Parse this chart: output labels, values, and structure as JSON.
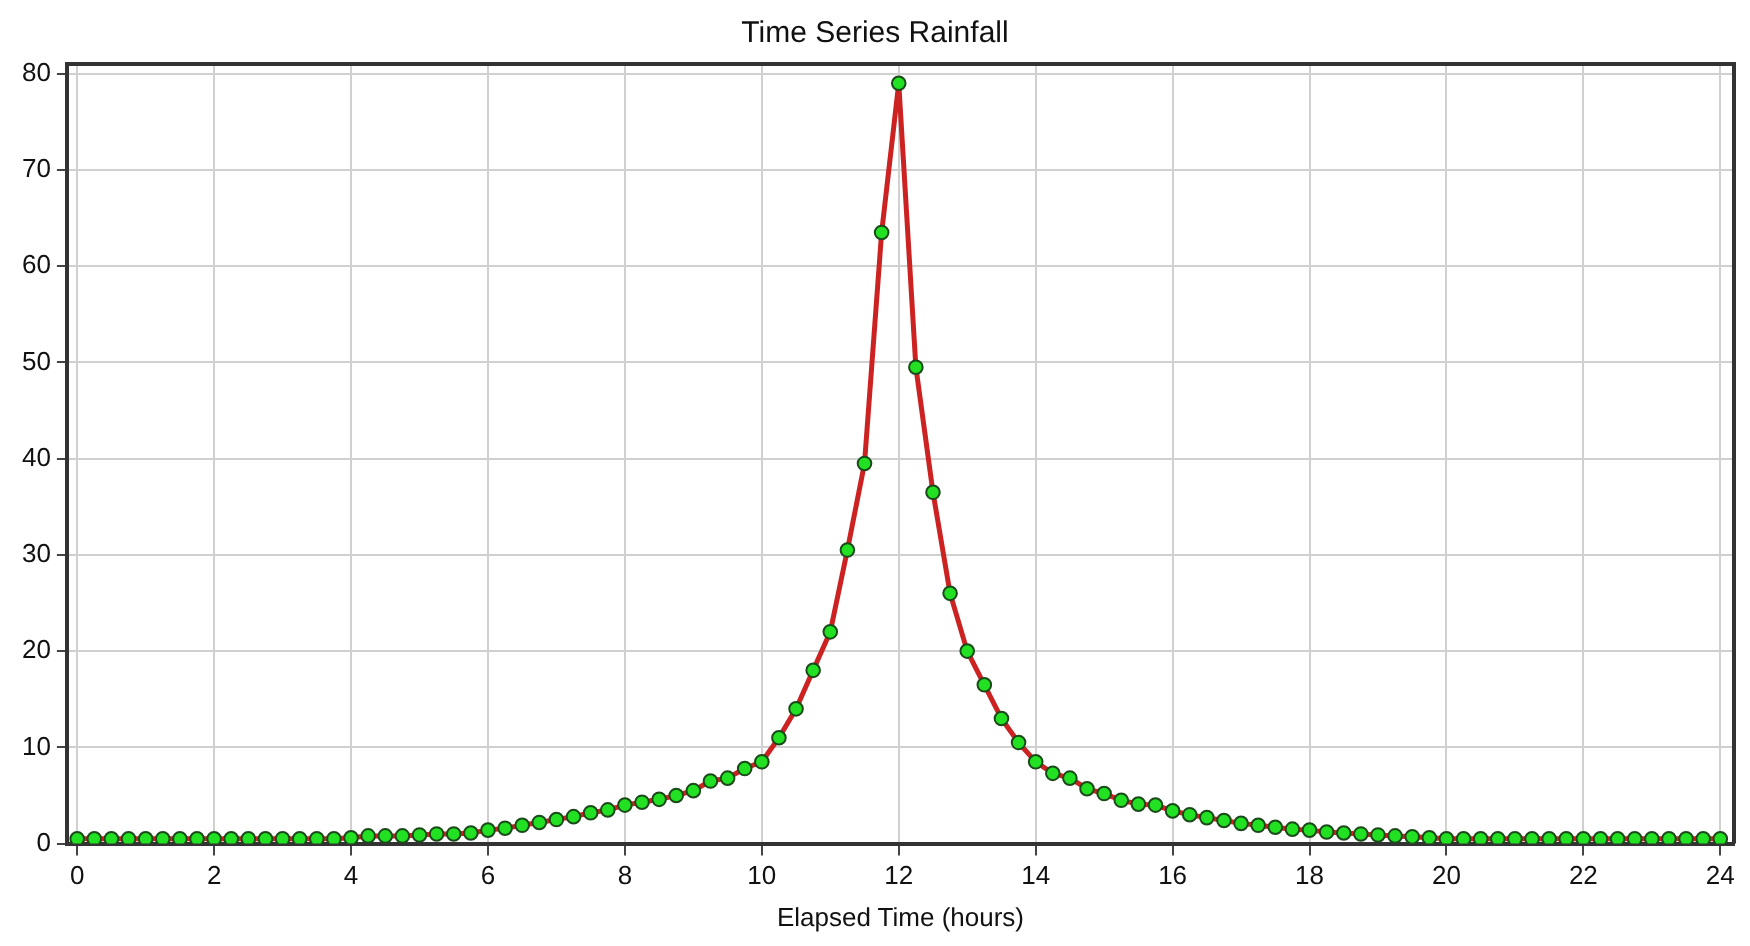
{
  "chart_data": {
    "type": "line",
    "title": "Time Series Rainfall",
    "xlabel": "Elapsed Time (hours)",
    "x": [
      0,
      0.25,
      0.5,
      0.75,
      1,
      1.25,
      1.5,
      1.75,
      2,
      2.25,
      2.5,
      2.75,
      3,
      3.25,
      3.5,
      3.75,
      4,
      4.25,
      4.5,
      4.75,
      5,
      5.25,
      5.5,
      5.75,
      6,
      6.25,
      6.5,
      6.75,
      7,
      7.25,
      7.5,
      7.75,
      8,
      8.25,
      8.5,
      8.75,
      9,
      9.25,
      9.5,
      9.75,
      10,
      10.25,
      10.5,
      10.75,
      11,
      11.25,
      11.5,
      11.75,
      12,
      12.25,
      12.5,
      12.75,
      13,
      13.25,
      13.5,
      13.75,
      14,
      14.25,
      14.5,
      14.75,
      15,
      15.25,
      15.5,
      15.75,
      16,
      16.25,
      16.5,
      16.75,
      17,
      17.25,
      17.5,
      17.75,
      18,
      18.25,
      18.5,
      18.75,
      19,
      19.25,
      19.5,
      19.75,
      20,
      20.25,
      20.5,
      20.75,
      21,
      21.25,
      21.5,
      21.75,
      22,
      22.25,
      22.5,
      22.75,
      23,
      23.25,
      23.5,
      23.75,
      24
    ],
    "series": [
      {
        "color": "#cc2222",
        "values": [
          0.5,
          0.5,
          0.5,
          0.5,
          0.5,
          0.5,
          0.5,
          0.5,
          0.5,
          0.5,
          0.5,
          0.5,
          0.5,
          0.5,
          0.5,
          0.5,
          0.6,
          0.8,
          0.8,
          0.8,
          0.9,
          1.0,
          1.0,
          1.1,
          1.4,
          1.6,
          1.9,
          2.2,
          2.5,
          2.8,
          3.2,
          3.5,
          4.0,
          4.3,
          4.6,
          5.0,
          5.5,
          6.5,
          6.8,
          7.8,
          8.5,
          11,
          14,
          18,
          22,
          30.5,
          39.5,
          63.5,
          79,
          49.5,
          36.5,
          26,
          20,
          16.5,
          13,
          10.5,
          8.5,
          7.3,
          6.8,
          5.7,
          5.2,
          4.5,
          4.1,
          4.0,
          3.4,
          3.0,
          2.7,
          2.4,
          2.1,
          1.9,
          1.7,
          1.5,
          1.4,
          1.2,
          1.1,
          1.0,
          0.9,
          0.8,
          0.7,
          0.6,
          0.5,
          0.5,
          0.5,
          0.5,
          0.5,
          0.5,
          0.5,
          0.5,
          0.5,
          0.5,
          0.5,
          0.5,
          0.5,
          0.5,
          0.5,
          0.5,
          0.5
        ]
      }
    ],
    "xlim": [
      -0.15,
      24.2
    ],
    "xticks": [
      0,
      2,
      4,
      6,
      8,
      10,
      12,
      14,
      16,
      18,
      20,
      22,
      24
    ],
    "ylim": [
      0,
      81
    ],
    "yticks": [
      0,
      10,
      20,
      30,
      40,
      50,
      60,
      70,
      80
    ],
    "grid": true,
    "legend": false,
    "marker": "circle",
    "line_style": "solid"
  }
}
